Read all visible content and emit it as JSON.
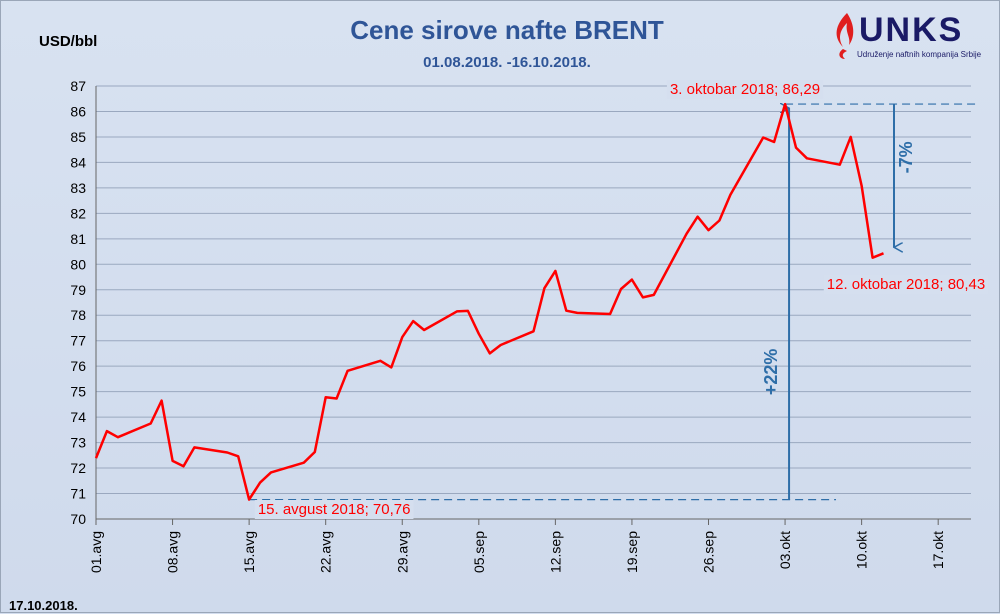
{
  "chart_data": {
    "type": "line",
    "title": "Cene sirove nafte BRENT",
    "subtitle": "01.08.2018. -16.10.2018.",
    "ylabel": "USD/bbl",
    "xlabel": "",
    "ylim": [
      70,
      87
    ],
    "xlim": [
      "2018-08-01",
      "2018-10-20"
    ],
    "grid": true,
    "x_ticks": [
      "01.avg",
      "08.avg",
      "15.avg",
      "22.avg",
      "29.avg",
      "05.sep",
      "12.sep",
      "19.sep",
      "26.sep",
      "03.okt",
      "10.okt",
      "17.okt"
    ],
    "y_ticks": [
      70,
      71,
      72,
      73,
      74,
      75,
      76,
      77,
      78,
      79,
      80,
      81,
      82,
      83,
      84,
      85,
      86,
      87
    ],
    "series": [
      {
        "color": "#ff0000",
        "x": [
          "2018-08-01",
          "2018-08-02",
          "2018-08-03",
          "2018-08-06",
          "2018-08-07",
          "2018-08-08",
          "2018-08-09",
          "2018-08-10",
          "2018-08-13",
          "2018-08-14",
          "2018-08-15",
          "2018-08-16",
          "2018-08-17",
          "2018-08-20",
          "2018-08-21",
          "2018-08-22",
          "2018-08-23",
          "2018-08-24",
          "2018-08-27",
          "2018-08-28",
          "2018-08-29",
          "2018-08-30",
          "2018-08-31",
          "2018-09-03",
          "2018-09-04",
          "2018-09-05",
          "2018-09-06",
          "2018-09-07",
          "2018-09-10",
          "2018-09-11",
          "2018-09-12",
          "2018-09-13",
          "2018-09-14",
          "2018-09-17",
          "2018-09-18",
          "2018-09-19",
          "2018-09-20",
          "2018-09-21",
          "2018-09-24",
          "2018-09-25",
          "2018-09-26",
          "2018-09-27",
          "2018-09-28",
          "2018-10-01",
          "2018-10-02",
          "2018-10-03",
          "2018-10-04",
          "2018-10-05",
          "2018-10-08",
          "2018-10-09",
          "2018-10-10",
          "2018-10-11",
          "2018-10-12"
        ],
        "values": [
          72.39,
          73.45,
          73.21,
          73.75,
          74.65,
          72.28,
          72.07,
          72.81,
          72.61,
          72.46,
          70.76,
          71.43,
          71.83,
          72.21,
          72.63,
          74.78,
          74.73,
          75.82,
          76.21,
          75.95,
          77.14,
          77.77,
          77.42,
          78.15,
          78.17,
          77.27,
          76.5,
          76.83,
          77.37,
          79.06,
          79.74,
          78.18,
          78.09,
          78.05,
          79.03,
          79.4,
          78.7,
          78.8,
          81.2,
          81.87,
          81.34,
          81.72,
          82.73,
          84.98,
          84.8,
          86.29,
          84.58,
          84.16,
          83.91,
          85.0,
          83.09,
          80.26,
          80.43
        ]
      }
    ],
    "annotations": {
      "max_label": "3. oktobar 2018; 86,29",
      "min_label": "15. avgust 2018; 70,76",
      "last_label": "12. oktobar 2018; 80,43",
      "rise_label": "+22%",
      "fall_label": "-7%"
    },
    "colors": {
      "line": "#ff0000",
      "axis_text": "#000000",
      "title": "#2f5597",
      "arrow": "#2e6ea8",
      "label": "#ff0000",
      "grid": "#9aa8bf"
    }
  },
  "footer": {
    "date": "17.10.2018."
  },
  "logo": {
    "name": "UNKS",
    "tagline": "Udruženje naftnih kompanija Srbije"
  }
}
